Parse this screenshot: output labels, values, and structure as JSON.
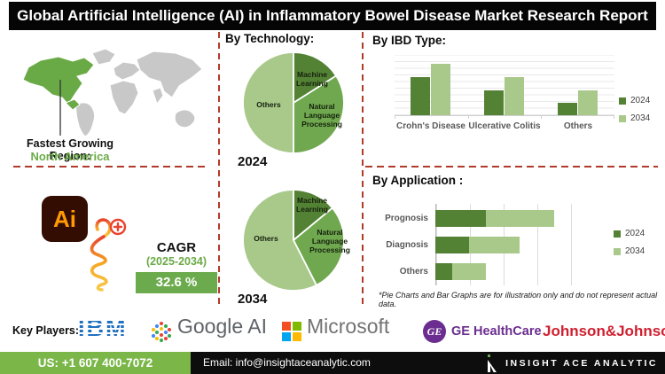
{
  "title": "Global Artificial Intelligence (AI) in Inflammatory Bowel Disease Market Research Report",
  "map": {
    "region_label": "Fastest Growing Region:",
    "region_value": "North America",
    "highlight_color": "#6aaa46",
    "land_color": "#c8c8c8"
  },
  "cagr": {
    "ai_badge_text": "Ai",
    "label": "CAGR",
    "period": "(2025-2034)",
    "value": "32.6 %",
    "badge_color": "#6cab4d"
  },
  "sections": {
    "technology": "By Technology:",
    "ibd_type": "By IBD Type:",
    "application": "By Application :"
  },
  "chart_data": [
    {
      "type": "pie",
      "title": "By Technology:",
      "year_label": "2024",
      "slices": [
        {
          "label": "Machine Learning",
          "value": 16,
          "color": "#548235"
        },
        {
          "label": "Natural Language Processing",
          "value": 34,
          "color": "#70a850"
        },
        {
          "label": "Others",
          "value": 50,
          "color": "#a9c98b"
        }
      ]
    },
    {
      "type": "pie",
      "title": "By Technology:",
      "year_label": "2034",
      "slices": [
        {
          "label": "Machine Learning",
          "value": 14,
          "color": "#548235"
        },
        {
          "label": "Natural Language Processing",
          "value": 28.5,
          "color": "#70a850"
        },
        {
          "label": "Others",
          "value": 57.5,
          "color": "#a9c98b"
        }
      ]
    },
    {
      "type": "bar",
      "title": "By IBD Type:",
      "categories": [
        "Crohn's Disease",
        "Ulcerative Colitis",
        "Others"
      ],
      "series": [
        {
          "name": "2024",
          "color": "#548235",
          "values": [
            64,
            42,
            21
          ]
        },
        {
          "name": "2034",
          "color": "#a9c98b",
          "values": [
            87,
            64,
            42
          ]
        }
      ],
      "ylim": [
        0,
        100
      ],
      "grid": true,
      "legend_position": "right"
    },
    {
      "type": "stacked-bar-horizontal",
      "title": "By Application :",
      "categories": [
        "Prognosis",
        "Diagnosis",
        "Others"
      ],
      "series": [
        {
          "name": "2024",
          "color": "#548235",
          "values": [
            37.5,
            25,
            12.5
          ]
        },
        {
          "name": "2034",
          "color": "#a9c98b",
          "values": [
            50.5,
            37.5,
            25
          ]
        }
      ],
      "xlim": [
        0,
        100
      ],
      "grid": true,
      "legend_position": "right"
    }
  ],
  "footnote": "*Pie Charts and Bar Graphs are for illustration only and do not represent actual data.",
  "key_players": {
    "label": "Key Players:",
    "ibm": {
      "text": "IBM",
      "color": "#1f70c1"
    },
    "google": {
      "text": "Google AI",
      "color": "#5f6368",
      "dot_colors": [
        "#4285f4",
        "#ea4335",
        "#fbbc05",
        "#34a853"
      ]
    },
    "microsoft": {
      "text": "Microsoft",
      "color": "#737373",
      "square_colors": [
        "#f25022",
        "#7fba00",
        "#00a4ef",
        "#ffb900"
      ]
    },
    "ge": {
      "monogram": "GE",
      "text": "GE HealthCare",
      "color": "#6b2d8f"
    },
    "jnj": {
      "text": "Johnson&Johnson",
      "color": "#cf2030"
    }
  },
  "footer": {
    "phone": "US: +1 607 400-7072",
    "email": "Email: info@insightaceanalytic.com",
    "brand": "INSIGHT ACE ANALYTIC"
  }
}
